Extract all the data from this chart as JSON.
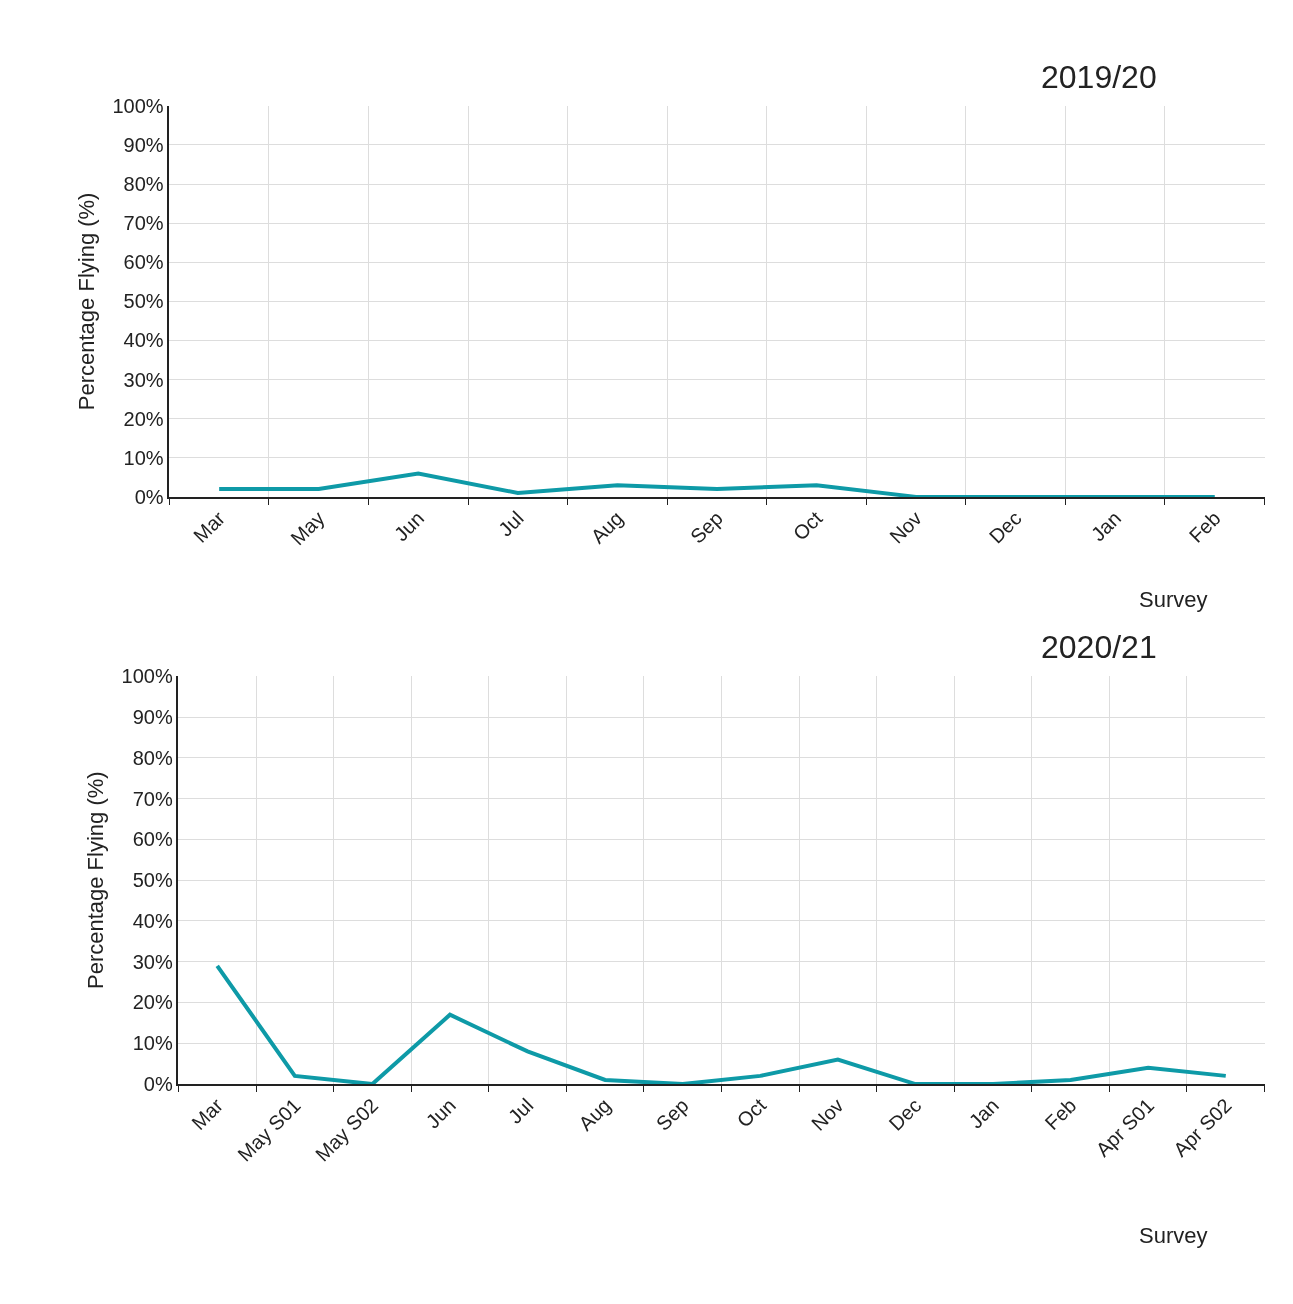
{
  "chart_data": [
    {
      "type": "line",
      "title": "2019/20",
      "xlabel": "Survey",
      "ylabel": "Percentage Flying (%)",
      "categories": [
        "Mar",
        "May",
        "Jun",
        "Jul",
        "Aug",
        "Sep",
        "Oct",
        "Nov",
        "Dec",
        "Jan",
        "Feb"
      ],
      "series": [
        {
          "color": "#0e9aa7",
          "values": [
            2,
            2,
            6,
            1,
            3,
            2,
            3,
            0,
            0,
            0,
            0
          ]
        }
      ],
      "ylim": [
        0,
        100
      ],
      "yticks": [
        {
          "value": 0,
          "label": "0%"
        },
        {
          "value": 10,
          "label": "10%"
        },
        {
          "value": 20,
          "label": "20%"
        },
        {
          "value": 30,
          "label": "30%"
        },
        {
          "value": 40,
          "label": "40%"
        },
        {
          "value": 50,
          "label": "50%"
        },
        {
          "value": 60,
          "label": "60%"
        },
        {
          "value": 70,
          "label": "70%"
        },
        {
          "value": 80,
          "label": "80%"
        },
        {
          "value": 90,
          "label": "90%"
        },
        {
          "value": 100,
          "label": "100%"
        }
      ],
      "grid": true,
      "marker": "none",
      "line_style": "solid"
    },
    {
      "type": "line",
      "title": "2020/21",
      "xlabel": "Survey",
      "ylabel": "Percentage Flying (%)",
      "categories": [
        "Mar",
        "May S01",
        "May S02",
        "Jun",
        "Jul",
        "Aug",
        "Sep",
        "Oct",
        "Nov",
        "Dec",
        "Jan",
        "Feb",
        "Apr S01",
        "Apr S02"
      ],
      "series": [
        {
          "color": "#0e9aa7",
          "values": [
            29,
            2,
            0,
            17,
            8,
            1,
            0,
            2,
            6,
            0,
            0,
            1,
            4,
            2
          ]
        }
      ],
      "ylim": [
        0,
        100
      ],
      "yticks": [
        {
          "value": 0,
          "label": "0%"
        },
        {
          "value": 10,
          "label": "10%"
        },
        {
          "value": 20,
          "label": "20%"
        },
        {
          "value": 30,
          "label": "30%"
        },
        {
          "value": 40,
          "label": "40%"
        },
        {
          "value": 50,
          "label": "50%"
        },
        {
          "value": 60,
          "label": "60%"
        },
        {
          "value": 70,
          "label": "70%"
        },
        {
          "value": 80,
          "label": "80%"
        },
        {
          "value": 90,
          "label": "90%"
        },
        {
          "value": 100,
          "label": "100%"
        }
      ],
      "grid": true,
      "marker": "none",
      "line_style": "solid"
    }
  ]
}
